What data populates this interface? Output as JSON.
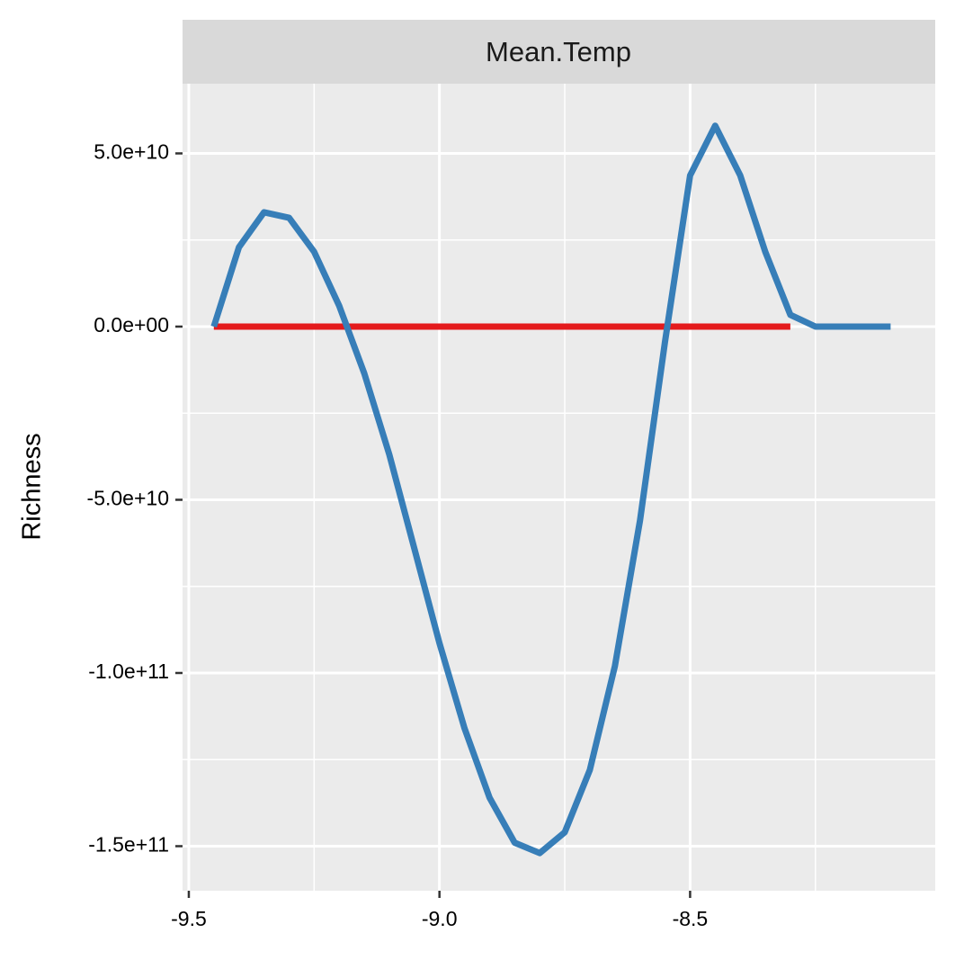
{
  "chart_data": {
    "type": "line",
    "facet": "Mean.Temp",
    "y_label": "Richness",
    "x": [
      -9.45,
      -9.4,
      -9.35,
      -9.3,
      -9.25,
      -9.2,
      -9.15,
      -9.1,
      -9.05,
      -9.0,
      -8.95,
      -8.9,
      -8.85,
      -8.8,
      -8.75,
      -8.7,
      -8.65,
      -8.6,
      -8.55,
      -8.5,
      -8.45,
      -8.4,
      -8.35,
      -8.3,
      -8.25,
      -8.2,
      -8.15,
      -8.1
    ],
    "series": [
      {
        "color": "#e41a1c",
        "values": [
          0,
          0,
          0,
          0,
          0,
          0,
          0,
          0,
          0,
          0,
          0,
          0,
          0,
          0,
          0,
          0,
          0,
          0,
          0,
          0,
          0,
          0,
          0,
          0,
          null,
          null,
          null,
          null
        ]
      },
      {
        "color": "#377eb8",
        "values": [
          0,
          22900000000,
          33000000000,
          31400000000,
          21600000000,
          6000000000,
          -13500000000,
          -36900000000,
          -64100000000,
          -91400000000,
          -116000000000,
          -136000000000,
          -149000000000,
          -152000000000,
          -146000000000,
          -128000000000,
          -98000000000,
          -56000000000,
          -4400000000,
          43600000000,
          58000000000,
          43600000000,
          21600000000,
          3400000000,
          0,
          0,
          0,
          0
        ]
      }
    ],
    "xlim": [
      -9.5125,
      -8.011
    ],
    "ylim": [
      -162860000000,
      70130000000
    ],
    "xticks": [
      -9.5,
      {
        "value": -9.0,
        "label": "-9.0"
      },
      -8.5
    ],
    "yticks": [
      {
        "value": -150000000000,
        "label": "-1.5e+11"
      },
      {
        "value": -100000000000,
        "label": "-1.0e+11"
      },
      {
        "value": -50000000000,
        "label": "-5.0e+10"
      },
      {
        "value": 0,
        "label": "0.0e+00"
      },
      {
        "value": 50000000000,
        "label": "5.0e+10"
      }
    ],
    "grid": true,
    "minor_grid": true
  }
}
